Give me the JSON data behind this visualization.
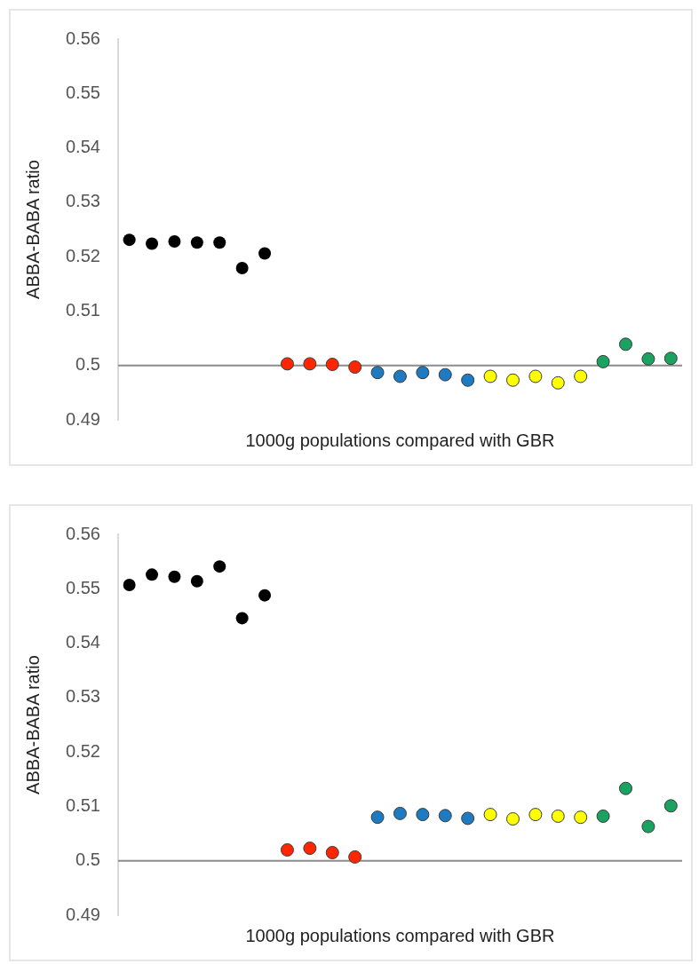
{
  "chart_data": [
    {
      "type": "scatter",
      "xlabel": "1000g populations compared with GBR",
      "ylabel": "ABBA-BABA ratio",
      "categories": [
        null,
        null,
        null,
        null,
        null,
        null,
        null,
        null,
        null,
        null,
        null,
        null,
        null,
        null,
        null,
        null,
        null,
        null,
        null,
        null,
        null,
        null,
        null,
        null,
        null
      ],
      "series": [
        {
          "color": "#000000",
          "values": [
            0.5231,
            0.5224,
            0.5228,
            0.5226,
            0.5226,
            0.5179,
            0.5206,
            null,
            null,
            null,
            null,
            null,
            null,
            null,
            null,
            null,
            null,
            null,
            null,
            null,
            null,
            null,
            null,
            null,
            null
          ]
        },
        {
          "color": "#ff2600",
          "values": [
            null,
            null,
            null,
            null,
            null,
            null,
            null,
            0.5003,
            0.5003,
            0.5002,
            0.4997,
            null,
            null,
            null,
            null,
            null,
            null,
            null,
            null,
            null,
            null,
            null,
            null,
            null,
            null
          ]
        },
        {
          "color": "#1f7bc1",
          "values": [
            null,
            null,
            null,
            null,
            null,
            null,
            null,
            null,
            null,
            null,
            null,
            0.4987,
            0.498,
            0.4987,
            0.4983,
            0.4973,
            null,
            null,
            null,
            null,
            null,
            null,
            null,
            null,
            null
          ]
        },
        {
          "color": "#ffff00",
          "values": [
            null,
            null,
            null,
            null,
            null,
            null,
            null,
            null,
            null,
            null,
            null,
            null,
            null,
            null,
            null,
            null,
            0.498,
            0.4973,
            0.498,
            0.4968,
            0.498,
            null,
            null,
            null,
            null
          ]
        },
        {
          "color": "#1aa260",
          "values": [
            null,
            null,
            null,
            null,
            null,
            null,
            null,
            null,
            null,
            null,
            null,
            null,
            null,
            null,
            null,
            null,
            null,
            null,
            null,
            null,
            null,
            0.5007,
            0.5039,
            0.5012,
            0.5013
          ]
        }
      ],
      "ylim": [
        0.49,
        0.56
      ],
      "yticks": [
        0.49,
        0.5,
        0.51,
        0.52,
        0.53,
        0.54,
        0.55,
        0.56
      ],
      "tick_labels": "y",
      "marker": "circle",
      "ref_lines": [
        {
          "axis": "y",
          "value": 0.5,
          "color": "#8c8c8c"
        }
      ]
    },
    {
      "type": "scatter",
      "xlabel": "1000g populations compared with GBR",
      "ylabel": "ABBA-BABA ratio",
      "categories": [
        null,
        null,
        null,
        null,
        null,
        null,
        null,
        null,
        null,
        null,
        null,
        null,
        null,
        null,
        null,
        null,
        null,
        null,
        null,
        null,
        null,
        null,
        null,
        null,
        null
      ],
      "series": [
        {
          "color": "#000000",
          "values": [
            0.5507,
            0.5526,
            0.5522,
            0.5514,
            0.5541,
            0.5446,
            0.5488,
            null,
            null,
            null,
            null,
            null,
            null,
            null,
            null,
            null,
            null,
            null,
            null,
            null,
            null,
            null,
            null,
            null,
            null
          ]
        },
        {
          "color": "#ff2600",
          "values": [
            null,
            null,
            null,
            null,
            null,
            null,
            null,
            0.502,
            0.5023,
            0.5015,
            0.5007,
            null,
            null,
            null,
            null,
            null,
            null,
            null,
            null,
            null,
            null,
            null,
            null,
            null,
            null
          ]
        },
        {
          "color": "#1f7bc1",
          "values": [
            null,
            null,
            null,
            null,
            null,
            null,
            null,
            null,
            null,
            null,
            null,
            0.508,
            0.5087,
            0.5085,
            0.5083,
            0.5078,
            null,
            null,
            null,
            null,
            null,
            null,
            null,
            null,
            null
          ]
        },
        {
          "color": "#ffff00",
          "values": [
            null,
            null,
            null,
            null,
            null,
            null,
            null,
            null,
            null,
            null,
            null,
            null,
            null,
            null,
            null,
            null,
            0.5085,
            0.5077,
            0.5085,
            0.5082,
            0.508,
            null,
            null,
            null,
            null
          ]
        },
        {
          "color": "#1aa260",
          "values": [
            null,
            null,
            null,
            null,
            null,
            null,
            null,
            null,
            null,
            null,
            null,
            null,
            null,
            null,
            null,
            null,
            null,
            null,
            null,
            null,
            null,
            0.5082,
            0.5133,
            0.5063,
            0.5101
          ]
        }
      ],
      "ylim": [
        0.49,
        0.56
      ],
      "yticks": [
        0.49,
        0.5,
        0.51,
        0.52,
        0.53,
        0.54,
        0.55,
        0.56
      ],
      "tick_labels": "y",
      "marker": "circle",
      "ref_lines": [
        {
          "axis": "y",
          "value": 0.5,
          "color": "#8c8c8c"
        }
      ]
    }
  ]
}
